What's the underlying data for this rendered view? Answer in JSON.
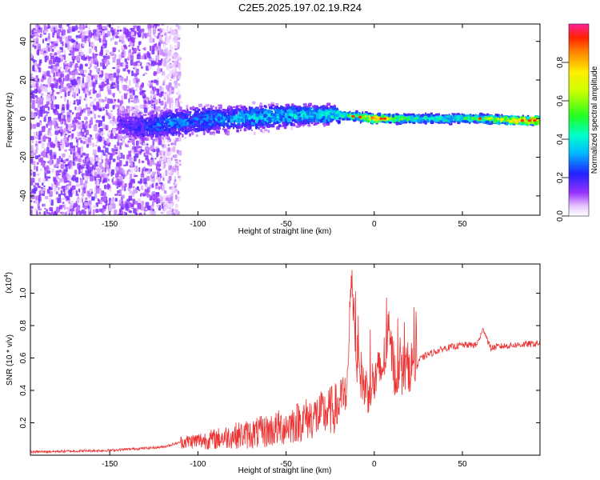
{
  "figure": {
    "title": "C2E5.2025.197.02.19.R24"
  },
  "chart_data": [
    {
      "type": "heatmap",
      "xlabel": "Height of straight line (km)",
      "ylabel": "Frequency (Hz)",
      "xlim": [
        -195,
        94
      ],
      "ylim": [
        -50,
        49
      ],
      "xticks": [
        -150,
        -100,
        -50,
        0,
        50
      ],
      "yticks": [
        -40,
        -20,
        0,
        20,
        40
      ],
      "colorbar": {
        "label": "Normalized spectral amplitude",
        "range": [
          0,
          1
        ],
        "ticks": [
          0.0,
          0.2,
          0.4,
          0.6,
          0.8
        ]
      },
      "description_points": {
        "x": [
          -190,
          -160,
          -140,
          -130,
          -120,
          -100,
          -80,
          -60,
          -40,
          -20,
          0,
          20,
          40,
          60,
          80,
          90
        ],
        "center_frequency_hz": [
          0,
          0,
          -3,
          -5,
          -3,
          -1,
          0,
          1,
          2,
          2,
          0,
          0,
          0,
          0,
          -1,
          -1
        ],
        "peak_amplitude": [
          0.15,
          0.15,
          0.2,
          0.25,
          0.3,
          0.3,
          0.35,
          0.4,
          0.4,
          0.45,
          0.85,
          0.5,
          0.5,
          0.55,
          0.85,
          0.9
        ]
      }
    },
    {
      "type": "line",
      "xlabel": "Height of straight line (km)",
      "ylabel": "SNR (10 * v/v)",
      "y_multiplier_label": "(x10",
      "y_multiplier_exp": "4",
      "y_multiplier_close": ")",
      "xlim": [
        -195,
        94
      ],
      "ylim": [
        0,
        1.18
      ],
      "xticks": [
        -150,
        -100,
        -50,
        0,
        50
      ],
      "yticks": [
        0.2,
        0.4,
        0.6,
        0.8,
        1.0
      ],
      "series": [
        {
          "color": "#ee3333",
          "x": [
            -195,
            -150,
            -120,
            -110,
            -100,
            -90,
            -80,
            -70,
            -60,
            -50,
            -40,
            -30,
            -20,
            -15,
            -13,
            -10,
            -5,
            0,
            5,
            8,
            12,
            20,
            30,
            40,
            50,
            58,
            62,
            66,
            70,
            80,
            94
          ],
          "y": [
            0.02,
            0.03,
            0.05,
            0.08,
            0.09,
            0.1,
            0.12,
            0.13,
            0.15,
            0.18,
            0.22,
            0.25,
            0.3,
            0.45,
            1.15,
            0.6,
            0.4,
            0.45,
            0.55,
            0.75,
            0.5,
            0.55,
            0.62,
            0.66,
            0.68,
            0.68,
            0.78,
            0.66,
            0.67,
            0.68,
            0.69
          ]
        }
      ]
    }
  ]
}
